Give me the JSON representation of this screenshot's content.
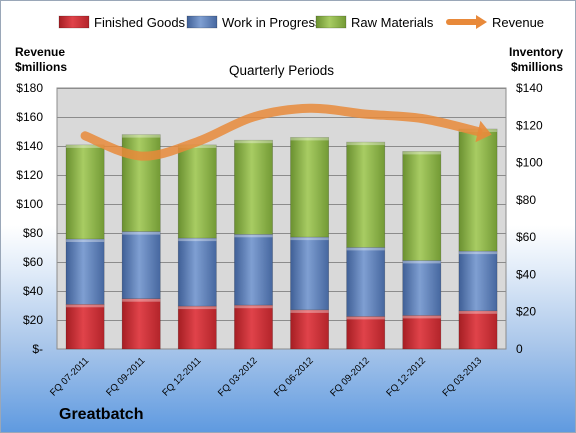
{
  "chart_data": {
    "type": "bar",
    "subtype": "stacked-bar-with-line",
    "title": "Quarterly Periods",
    "company": "Greatbatch",
    "categories": [
      "FQ 07-2011",
      "FQ 09-2011",
      "FQ 12-2011",
      "FQ 03-2012",
      "FQ 06-2012",
      "FQ 09-2012",
      "FQ 12-2012",
      "FQ 03-2013"
    ],
    "y_left": {
      "label_line1": "Revenue",
      "label_line2": "$millions",
      "ticks": [
        0,
        20,
        40,
        60,
        80,
        100,
        120,
        140,
        160,
        180
      ],
      "tick_labels": [
        "$-",
        "$20",
        "$40",
        "$60",
        "$80",
        "$100",
        "$120",
        "$140",
        "$160",
        "$180"
      ],
      "ylim": [
        0,
        180
      ]
    },
    "y_right": {
      "label_line1": "Inventory",
      "label_line2": "$millions",
      "ticks": [
        0,
        20,
        40,
        60,
        80,
        100,
        120,
        140
      ],
      "tick_labels": [
        "0",
        "$20",
        "$40",
        "$60",
        "$80",
        "$100",
        "$120",
        "$140"
      ],
      "ylim": [
        0,
        140
      ]
    },
    "series": [
      {
        "name": "Finished Goods",
        "axis": "right",
        "color": "#c0282d",
        "values": [
          24,
          27,
          23,
          23.5,
          21,
          17.5,
          18,
          20.5
        ]
      },
      {
        "name": "Work in Progress",
        "axis": "right",
        "color": "#4f6fa6",
        "values": [
          35,
          36,
          36.5,
          38,
          39,
          37,
          29.5,
          32
        ]
      },
      {
        "name": "Raw Materials",
        "axis": "right",
        "color": "#7ea33b",
        "values": [
          50.5,
          52,
          50,
          50.5,
          53.5,
          56.5,
          58.5,
          65.5
        ]
      },
      {
        "name": "Revenue",
        "axis": "left",
        "type": "line",
        "color": "#e8893a",
        "values": [
          147,
          133,
          143,
          160,
          166,
          162,
          159,
          150
        ]
      }
    ],
    "legend_position": "top",
    "grid": true
  }
}
